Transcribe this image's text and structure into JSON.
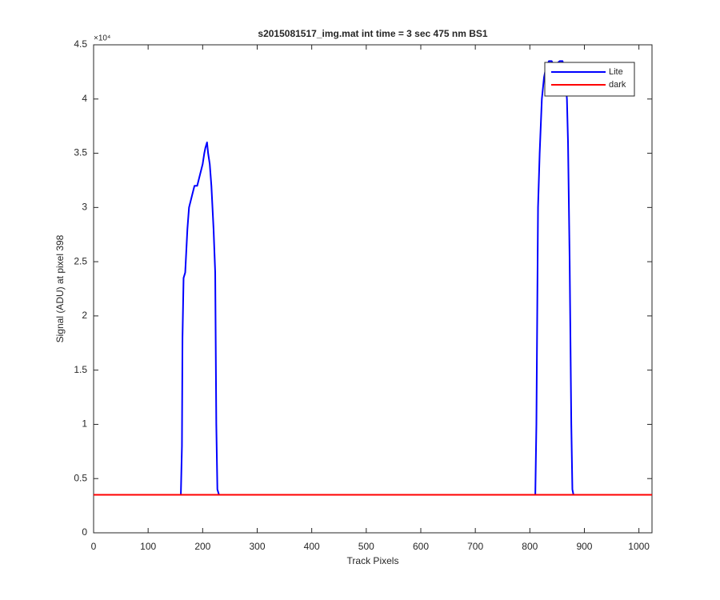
{
  "chart_data": {
    "type": "line",
    "title": "s2015081517_img.mat int time = 3 sec  475 nm BS1",
    "x_label": "Track Pixels",
    "y_label": "Signal (ADU) at pixel 398",
    "y_exponent": "×10⁴",
    "xlim": [
      0,
      1024
    ],
    "xticks": [
      0,
      100,
      200,
      300,
      400,
      500,
      600,
      700,
      800,
      900,
      1000
    ],
    "ylim": [
      0,
      4.5
    ],
    "yticks": [
      0,
      0.5,
      1,
      1.5,
      2,
      2.5,
      3,
      3.5,
      4,
      4.5
    ],
    "legend": "upper right",
    "series": [
      {
        "name": "Lite",
        "color": "#0000ff",
        "x": [
          0,
          160,
          162,
          163,
          165,
          168,
          172,
          175,
          180,
          185,
          190,
          195,
          200,
          203,
          205,
          208,
          210,
          213,
          216,
          220,
          223,
          225,
          227,
          230,
          810,
          812,
          815,
          818,
          822,
          826,
          830,
          835,
          840,
          845,
          850,
          855,
          860,
          865,
          868,
          870,
          873,
          876,
          878,
          880,
          1024
        ],
        "values": [
          0.35,
          0.35,
          0.8,
          1.8,
          2.35,
          2.4,
          2.8,
          3.0,
          3.1,
          3.2,
          3.2,
          3.3,
          3.4,
          3.5,
          3.55,
          3.6,
          3.5,
          3.4,
          3.2,
          2.8,
          2.4,
          1.0,
          0.4,
          0.35,
          0.35,
          1.0,
          3.0,
          3.5,
          4.0,
          4.2,
          4.3,
          4.35,
          4.35,
          4.3,
          4.33,
          4.35,
          4.35,
          4.2,
          4.0,
          3.6,
          2.5,
          1.0,
          0.4,
          0.35,
          0.35
        ]
      },
      {
        "name": "dark",
        "color": "#ff0000",
        "x": [
          0,
          1024
        ],
        "values": [
          0.35,
          0.35
        ]
      }
    ]
  }
}
